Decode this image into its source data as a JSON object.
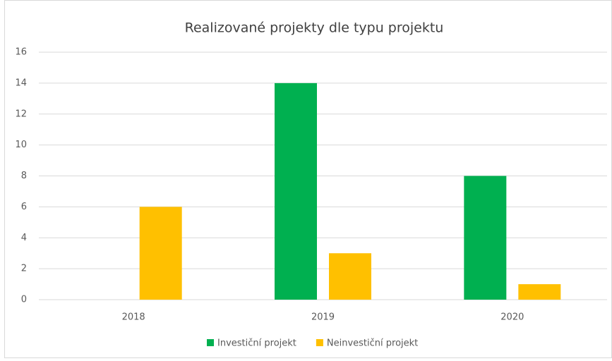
{
  "chart_data": {
    "type": "bar",
    "title": "Realizované projekty dle typu projektu",
    "categories": [
      "2018",
      "2019",
      "2020"
    ],
    "series": [
      {
        "name": "Investiční projekt",
        "color": "#00b050",
        "values": [
          0,
          14,
          8
        ]
      },
      {
        "name": "Neinvestiční projekt",
        "color": "#ffc000",
        "values": [
          6,
          3,
          1
        ]
      }
    ],
    "ylim": [
      0,
      16
    ],
    "yticks": [
      0,
      2,
      4,
      6,
      8,
      10,
      12,
      14,
      16
    ],
    "grid": true,
    "legend": "bottom"
  }
}
